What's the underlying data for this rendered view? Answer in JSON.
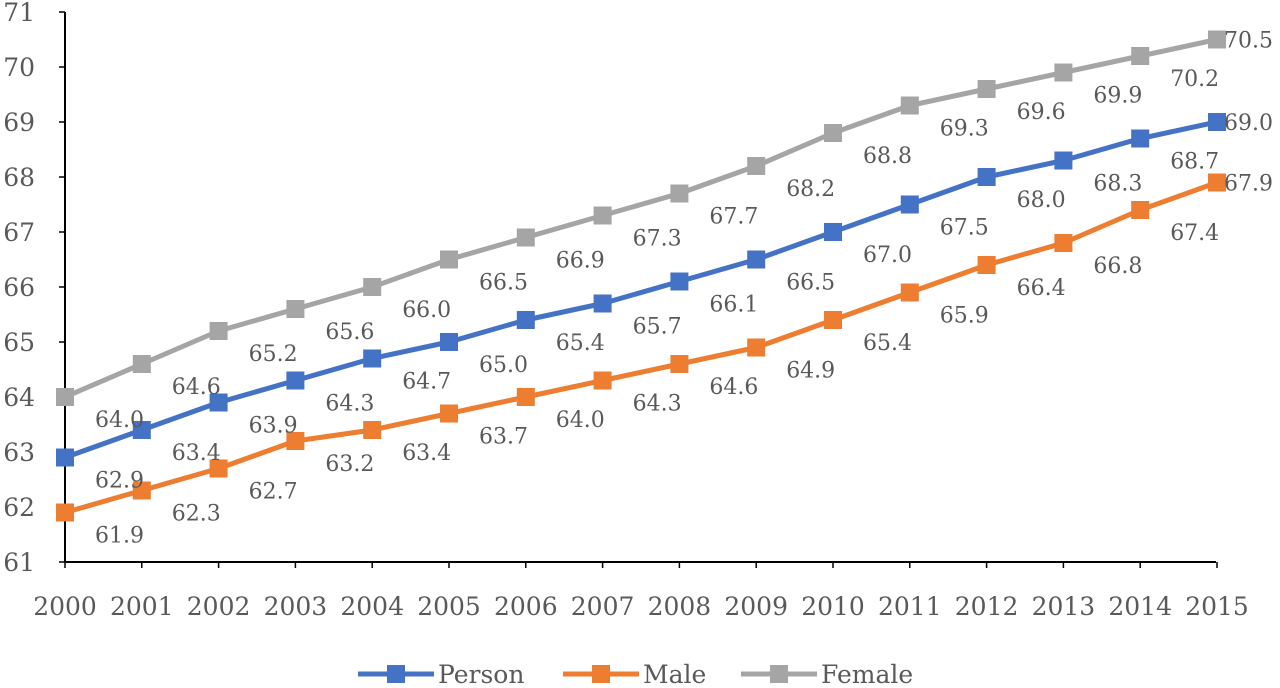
{
  "chart_data": {
    "type": "line",
    "title": "",
    "xlabel": "",
    "ylabel": "",
    "x": [
      "2000",
      "2001",
      "2002",
      "2003",
      "2004",
      "2005",
      "2006",
      "2007",
      "2008",
      "2009",
      "2010",
      "2011",
      "2012",
      "2013",
      "2014",
      "2015"
    ],
    "ylim": [
      61,
      71
    ],
    "yticks": [
      "61",
      "62",
      "63",
      "64",
      "65",
      "66",
      "67",
      "68",
      "69",
      "70",
      "71"
    ],
    "grid": false,
    "legend_position": "bottom",
    "series": [
      {
        "name": "Person",
        "color": "#4472C4",
        "values": [
          62.9,
          63.4,
          63.9,
          64.3,
          64.7,
          65.0,
          65.4,
          65.7,
          66.1,
          66.5,
          67.0,
          67.5,
          68.0,
          68.3,
          68.7,
          69.0
        ],
        "labels": [
          "62.9",
          "63.4",
          "63.9",
          "64.3",
          "64.7",
          "65.0",
          "65.4",
          "65.7",
          "66.1",
          "66.5",
          "67.0",
          "67.5",
          "68.0",
          "68.3",
          "68.7",
          "69.0"
        ]
      },
      {
        "name": "Male",
        "color": "#ED7D31",
        "values": [
          61.9,
          62.3,
          62.7,
          63.2,
          63.4,
          63.7,
          64.0,
          64.3,
          64.6,
          64.9,
          65.4,
          65.9,
          66.4,
          66.8,
          67.4,
          67.9
        ],
        "labels": [
          "61.9",
          "62.3",
          "62.7",
          "63.2",
          "63.4",
          "63.7",
          "64.0",
          "64.3",
          "64.6",
          "64.9",
          "65.4",
          "65.9",
          "66.4",
          "66.8",
          "67.4",
          "67.9"
        ]
      },
      {
        "name": "Female",
        "color": "#A5A5A5",
        "values": [
          64.0,
          64.6,
          65.2,
          65.6,
          66.0,
          66.5,
          66.9,
          67.3,
          67.7,
          68.2,
          68.8,
          69.3,
          69.6,
          69.9,
          70.2,
          70.5
        ],
        "labels": [
          "64.0",
          "64.6",
          "65.2",
          "65.6",
          "66.0",
          "66.5",
          "66.9",
          "67.3",
          "67.7",
          "68.2",
          "68.8",
          "69.3",
          "69.6",
          "69.9",
          "70.2",
          "70.5"
        ]
      }
    ]
  }
}
